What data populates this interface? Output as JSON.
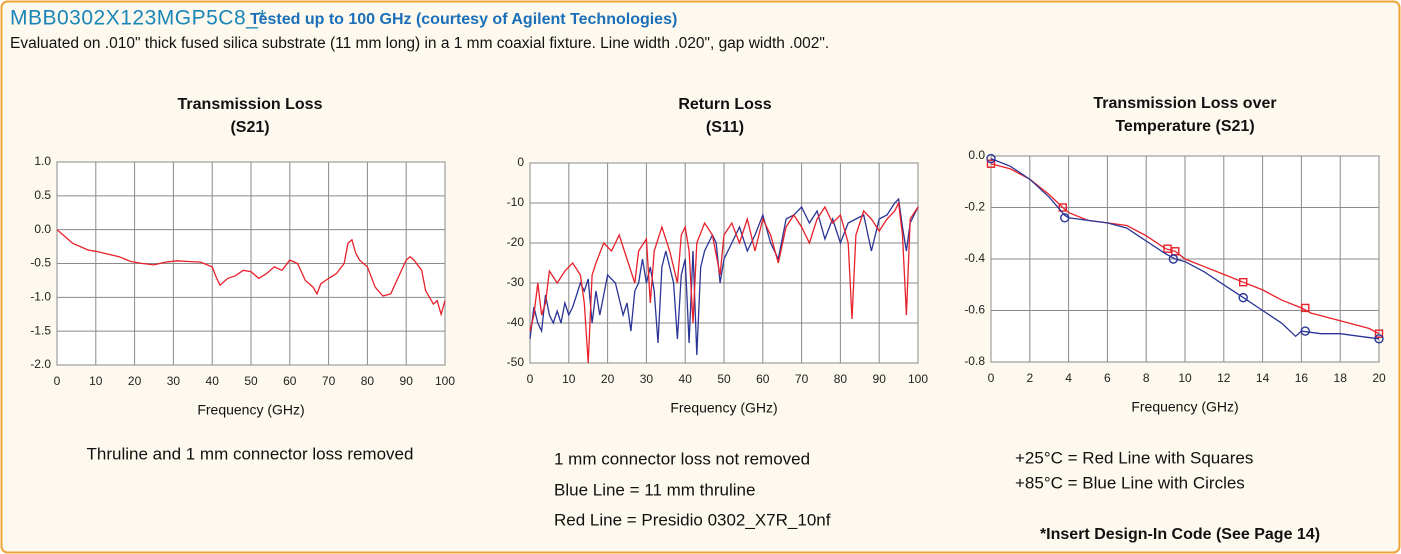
{
  "header": {
    "title": "MBB0302X123MGP5C8_*",
    "subtitle": "Tested up to 100 GHz (courtesy of Agilent Technologies)",
    "description": "Evaluated on .010\" thick fused silica substrate (11 mm long) in a 1 mm coaxial fixture. Line width .020\", gap width .002\"."
  },
  "captions": [
    [
      "Thruline and 1 mm connector loss removed"
    ],
    [
      "1 mm connector loss not removed",
      "Blue Line = 11 mm thruline",
      "Red Line = Presidio 0302_X7R_10nf"
    ],
    [
      "+25°C = Red Line with Squares",
      "+85°C = Blue Line with Circles"
    ]
  ],
  "footnote": "*Insert Design-In Code (See Page 14)",
  "chart_data": [
    {
      "type": "line",
      "title": [
        "Transmission Loss",
        "(S21)"
      ],
      "x_label": "Frequency (GHz)",
      "grid": true,
      "xlim": [
        0,
        100
      ],
      "xticks": [
        0,
        10,
        20,
        30,
        40,
        50,
        60,
        70,
        80,
        90,
        100
      ],
      "ylim": [
        -2,
        1
      ],
      "yticks": [
        {
          "value": 1,
          "label": "1.0"
        },
        0.5,
        {
          "value": 0,
          "label": "0.0"
        },
        -0.5,
        {
          "value": -1,
          "label": "-1.0"
        },
        -1.5,
        {
          "value": -2,
          "label": "-2.0"
        }
      ],
      "series": [
        {
          "color": "#e8212b",
          "x": [
            0,
            2,
            4,
            6,
            8,
            10,
            13,
            16,
            19,
            22,
            25,
            28,
            31,
            34,
            37,
            40,
            41,
            42,
            44,
            46,
            48,
            50,
            52,
            54,
            56,
            58,
            60,
            62,
            64,
            66,
            67,
            68,
            70,
            72,
            74,
            75,
            76,
            77,
            78,
            80,
            82,
            84,
            86,
            88,
            90,
            91,
            92,
            94,
            95,
            96,
            97,
            98,
            99,
            100
          ],
          "values": [
            0,
            -0.1,
            -0.2,
            -0.25,
            -0.3,
            -0.32,
            -0.36,
            -0.4,
            -0.47,
            -0.5,
            -0.52,
            -0.48,
            -0.46,
            -0.47,
            -0.48,
            -0.55,
            -0.7,
            -0.82,
            -0.72,
            -0.68,
            -0.6,
            -0.62,
            -0.72,
            -0.65,
            -0.55,
            -0.6,
            -0.45,
            -0.5,
            -0.75,
            -0.85,
            -0.95,
            -0.8,
            -0.72,
            -0.65,
            -0.5,
            -0.2,
            -0.15,
            -0.35,
            -0.45,
            -0.55,
            -0.85,
            -0.98,
            -0.95,
            -0.7,
            -0.45,
            -0.4,
            -0.45,
            -0.6,
            -0.9,
            -1.0,
            -1.1,
            -1.05,
            -1.25,
            -1.05
          ]
        }
      ]
    },
    {
      "type": "line",
      "title": [
        "Return Loss",
        "(S11)"
      ],
      "x_label": "Frequency (GHz)",
      "grid": true,
      "xlim": [
        0,
        100
      ],
      "xticks": [
        0,
        10,
        20,
        30,
        40,
        50,
        60,
        70,
        80,
        90,
        100
      ],
      "ylim": [
        -50,
        0
      ],
      "yticks": [
        0,
        -10,
        -20,
        -30,
        -40,
        -50
      ],
      "series": [
        {
          "color": "#2a3596",
          "x": [
            0,
            1,
            2,
            3,
            4,
            5,
            6,
            7,
            8,
            9,
            10,
            11,
            12,
            13,
            14,
            15,
            16,
            17,
            18,
            20,
            22,
            24,
            25,
            26,
            27,
            28,
            29,
            30,
            31,
            32,
            33,
            34,
            35,
            36,
            37,
            38,
            39,
            40,
            41,
            42,
            43,
            44,
            45,
            47,
            48,
            49,
            50,
            52,
            54,
            56,
            58,
            60,
            62,
            64,
            66,
            68,
            70,
            72,
            74,
            76,
            78,
            80,
            82,
            84,
            86,
            88,
            90,
            92,
            94,
            95,
            96,
            97,
            98,
            100
          ],
          "values": [
            -44,
            -36,
            -40,
            -42,
            -33,
            -38,
            -40,
            -37,
            -40,
            -35,
            -38,
            -36,
            -33,
            -30,
            -32,
            -29,
            -40,
            -32,
            -38,
            -28,
            -30,
            -38,
            -35,
            -42,
            -32,
            -30,
            -24,
            -30,
            -26,
            -32,
            -45,
            -26,
            -22,
            -26,
            -30,
            -44,
            -28,
            -24,
            -45,
            -22,
            -48,
            -26,
            -22,
            -18,
            -20,
            -30,
            -24,
            -20,
            -16,
            -22,
            -18,
            -13,
            -20,
            -24,
            -14,
            -13,
            -11,
            -15,
            -12,
            -19,
            -14,
            -20,
            -15,
            -14,
            -13,
            -22,
            -14,
            -13,
            -10,
            -9,
            -16,
            -22,
            -15,
            -11
          ]
        },
        {
          "color": "#e8212b",
          "x": [
            0,
            1,
            2,
            3,
            4,
            5,
            7,
            9,
            11,
            13,
            14,
            15,
            16,
            17,
            19,
            21,
            23,
            25,
            27,
            28,
            30,
            31,
            32,
            34,
            36,
            38,
            39,
            40,
            41,
            42,
            43,
            45,
            47,
            49,
            50,
            52,
            54,
            56,
            58,
            60,
            62,
            64,
            66,
            68,
            70,
            72,
            74,
            76,
            78,
            80,
            82,
            83,
            84,
            86,
            88,
            90,
            92,
            94,
            95,
            96,
            97,
            98,
            100
          ],
          "values": [
            -42,
            -38,
            -30,
            -38,
            -35,
            -27,
            -30,
            -27,
            -25,
            -28,
            -35,
            -50,
            -28,
            -25,
            -20,
            -22,
            -18,
            -24,
            -30,
            -22,
            -19,
            -35,
            -22,
            -16,
            -22,
            -30,
            -18,
            -16,
            -22,
            -40,
            -20,
            -15,
            -18,
            -28,
            -18,
            -15,
            -20,
            -14,
            -22,
            -14,
            -18,
            -25,
            -16,
            -13,
            -16,
            -20,
            -14,
            -11,
            -15,
            -13,
            -20,
            -39,
            -18,
            -12,
            -14,
            -17,
            -14,
            -12,
            -10,
            -18,
            -38,
            -14,
            -11
          ]
        }
      ]
    },
    {
      "type": "line",
      "title": [
        "Transmission Loss over",
        "Temperature (S21)"
      ],
      "x_label": "Frequency (GHz)",
      "grid": true,
      "xlim": [
        0,
        20
      ],
      "xticks": [
        0,
        2,
        4,
        6,
        8,
        10,
        12,
        14,
        16,
        18,
        20
      ],
      "ylim": [
        -0.8,
        0
      ],
      "yticks": [
        {
          "value": 0,
          "label": "0.0"
        },
        -0.2,
        -0.4,
        -0.6,
        -0.8
      ],
      "series": [
        {
          "color": "#e8212b",
          "marker": "square",
          "x": [
            0,
            1,
            2,
            3,
            3.7,
            4,
            5,
            6,
            7,
            8,
            9,
            9.5,
            10,
            11,
            12,
            13,
            14,
            15,
            16,
            16.5,
            17,
            18,
            19,
            19.5,
            20
          ],
          "values": [
            -0.03,
            -0.05,
            -0.09,
            -0.15,
            -0.2,
            -0.22,
            -0.25,
            -0.26,
            -0.27,
            -0.31,
            -0.36,
            -0.37,
            -0.4,
            -0.43,
            -0.46,
            -0.49,
            -0.52,
            -0.56,
            -0.59,
            -0.61,
            -0.62,
            -0.64,
            -0.66,
            -0.67,
            -0.69
          ],
          "marker_x": [
            0,
            3.7,
            9.1,
            9.5,
            13,
            16.2,
            20
          ],
          "marker_values": [
            -0.03,
            -0.2,
            -0.36,
            -0.37,
            -0.49,
            -0.59,
            -0.69
          ]
        },
        {
          "color": "#2a3596",
          "marker": "circle",
          "x": [
            0,
            1,
            2,
            3,
            3.8,
            4,
            5,
            6,
            7,
            8,
            9,
            9.5,
            10,
            11,
            12,
            13,
            14,
            15,
            15.7,
            16,
            17,
            18,
            19,
            20
          ],
          "values": [
            -0.01,
            -0.04,
            -0.09,
            -0.16,
            -0.23,
            -0.24,
            -0.25,
            -0.26,
            -0.28,
            -0.33,
            -0.38,
            -0.4,
            -0.41,
            -0.45,
            -0.5,
            -0.55,
            -0.6,
            -0.65,
            -0.7,
            -0.68,
            -0.69,
            -0.69,
            -0.7,
            -0.71
          ],
          "marker_x": [
            0,
            3.8,
            9.4,
            13,
            16.2,
            20
          ],
          "marker_values": [
            -0.01,
            -0.24,
            -0.4,
            -0.55,
            -0.68,
            -0.71
          ]
        }
      ]
    }
  ]
}
